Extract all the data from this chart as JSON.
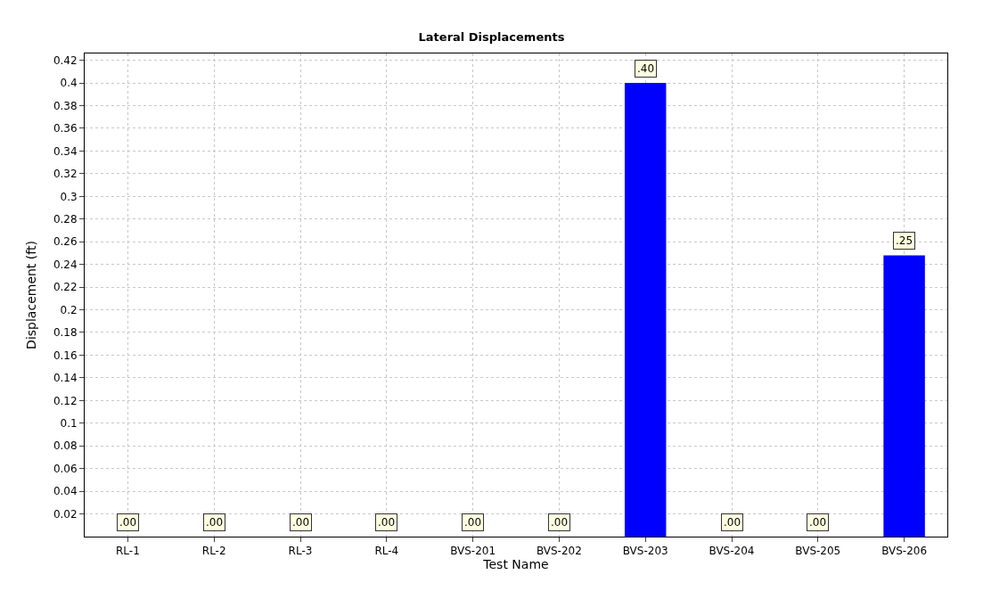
{
  "chart_data": {
    "type": "bar",
    "title": "Lateral Displacements",
    "xlabel": "Test Name",
    "ylabel": "Displacement (ft)",
    "categories": [
      "RL-1",
      "RL-2",
      "RL-3",
      "RL-4",
      "BVS-201",
      "BVS-202",
      "BVS-203",
      "BVS-204",
      "BVS-205",
      "BVS-206"
    ],
    "values": [
      0,
      0,
      0,
      0,
      0,
      0,
      0.4,
      0,
      0,
      0.248
    ],
    "value_labels": [
      ".00",
      ".00",
      ".00",
      ".00",
      ".00",
      ".00",
      ".40",
      ".00",
      ".00",
      ".25"
    ],
    "color": "#0000ff",
    "ylim": [
      0,
      0.426
    ],
    "yticks": [
      0.02,
      0.04,
      0.06,
      0.08,
      0.1,
      0.12,
      0.14,
      0.16,
      0.18,
      0.2,
      0.22,
      0.24,
      0.26,
      0.28,
      0.3,
      0.32,
      0.34,
      0.36,
      0.38,
      0.4,
      0.42
    ],
    "grid": true
  }
}
